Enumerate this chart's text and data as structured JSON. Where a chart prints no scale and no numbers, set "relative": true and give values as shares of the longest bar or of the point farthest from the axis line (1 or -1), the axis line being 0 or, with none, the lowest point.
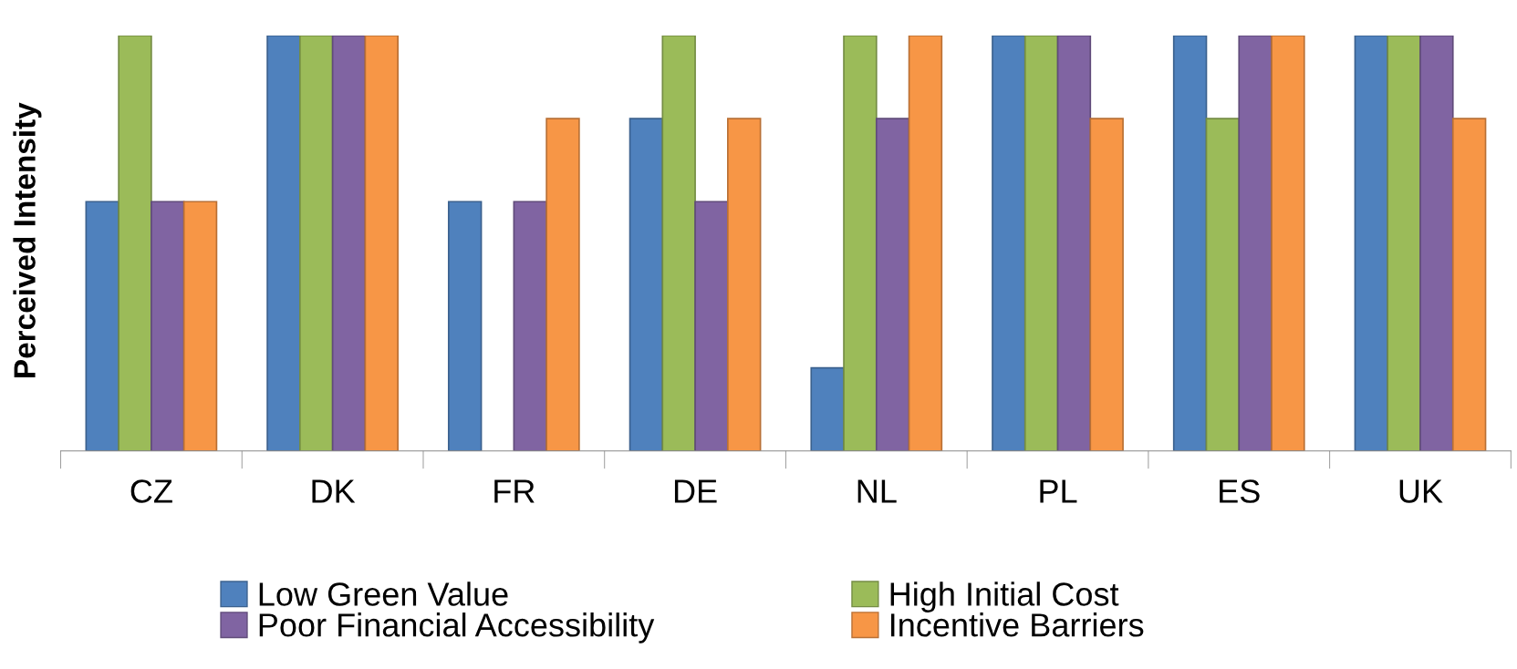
{
  "chart_data": {
    "type": "bar",
    "ylabel": "Perceived Intensity",
    "relative": true,
    "categories": [
      "CZ",
      "DK",
      "FR",
      "DE",
      "NL",
      "PL",
      "ES",
      "UK"
    ],
    "series": [
      {
        "name": "Low Green Value",
        "color": "#4f81bd",
        "values": [
          0.6,
          1,
          0.6,
          0.8,
          0.2,
          1,
          1,
          1
        ]
      },
      {
        "name": "High Initial Cost",
        "color": "#9bbb59",
        "values": [
          1,
          1,
          null,
          1,
          1,
          1,
          0.8,
          1
        ]
      },
      {
        "name": "Poor Financial Accessibility",
        "color": "#8064a2",
        "values": [
          0.6,
          1,
          0.6,
          0.6,
          0.8,
          1,
          1,
          1
        ]
      },
      {
        "name": "Incentive Barriers",
        "color": "#f79646",
        "values": [
          0.6,
          1,
          0.8,
          0.8,
          1,
          0.8,
          1,
          0.8
        ]
      }
    ],
    "grid": false,
    "legend": "bottom"
  }
}
